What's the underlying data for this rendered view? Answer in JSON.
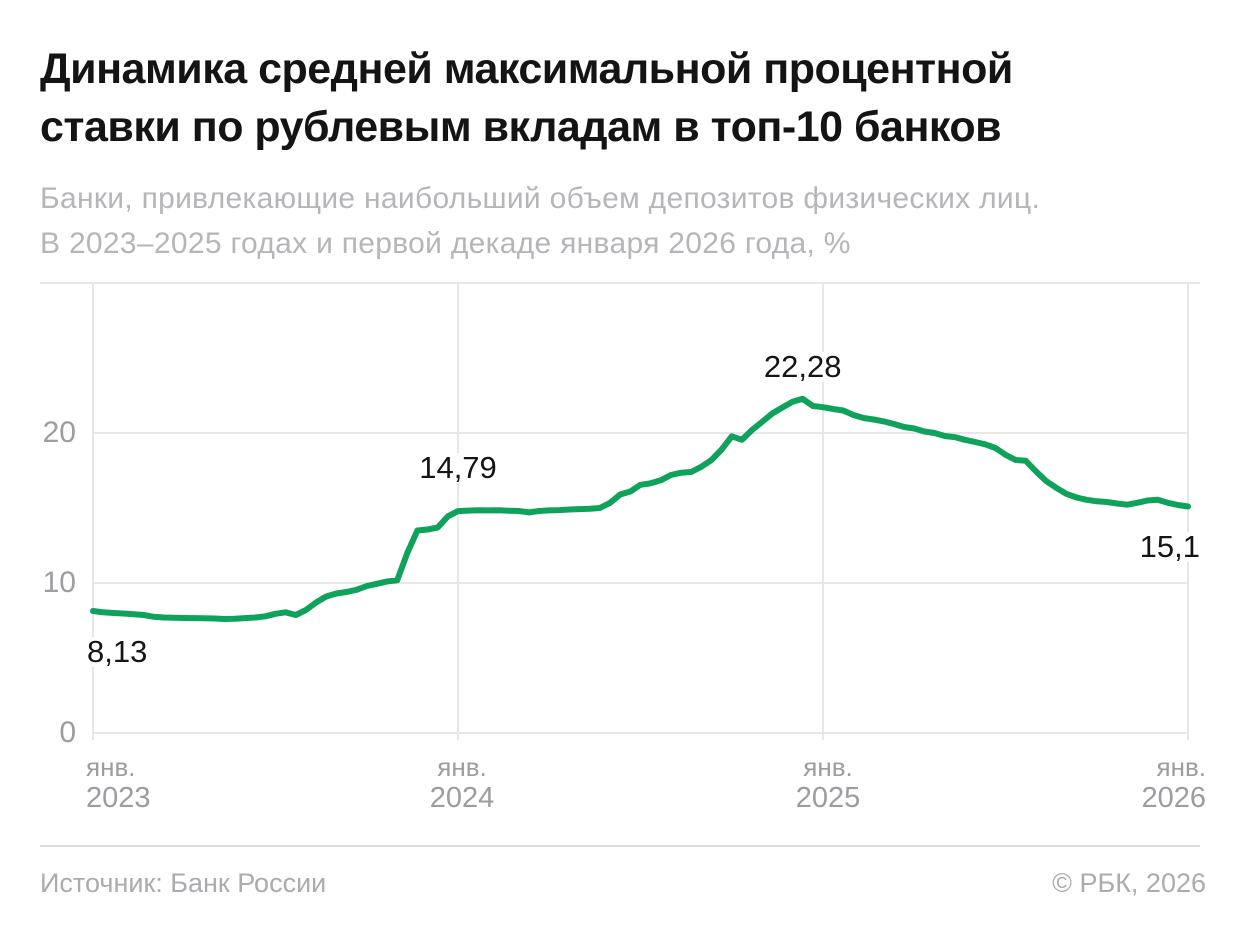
{
  "header": {
    "title_line1": "Динамика средней максимальной процентной",
    "title_line2": "ставки по рублевым вкладам в топ-10 банков",
    "subtitle_line1": "Банки, привлекающие наибольший объем депозитов физических лиц.",
    "subtitle_line2": "В 2023–2025 годах и первой декаде января 2026 года, %"
  },
  "chart_data": {
    "type": "line",
    "title": "Динамика средней максимальной процентной ставки по рублевым вкладам в топ-10 банков",
    "unit": "%",
    "x_description": "По декадам месяца, с января 2023 по первую декаду января 2026",
    "x_ticks": [
      {
        "month": "янв.",
        "year": "2023"
      },
      {
        "month": "янв.",
        "year": "2024"
      },
      {
        "month": "янв.",
        "year": "2025"
      },
      {
        "month": "янв.",
        "year": "2026"
      }
    ],
    "y_ticks": [
      0,
      10,
      20
    ],
    "ylim": [
      0,
      30
    ],
    "grid": true,
    "line_color": "#0fa25a",
    "values": [
      8.13,
      8.05,
      8.0,
      7.97,
      7.92,
      7.87,
      7.75,
      7.7,
      7.68,
      7.67,
      7.66,
      7.65,
      7.63,
      7.6,
      7.62,
      7.66,
      7.7,
      7.78,
      7.95,
      8.05,
      7.87,
      8.2,
      8.7,
      9.1,
      9.3,
      9.4,
      9.55,
      9.8,
      9.95,
      10.1,
      10.18,
      12.0,
      13.5,
      13.57,
      13.7,
      14.45,
      14.79,
      14.83,
      14.85,
      14.84,
      14.85,
      14.82,
      14.8,
      14.71,
      14.8,
      14.84,
      14.86,
      14.9,
      14.93,
      14.95,
      15.0,
      15.35,
      15.9,
      16.1,
      16.55,
      16.65,
      16.85,
      17.2,
      17.35,
      17.4,
      17.75,
      18.2,
      18.9,
      19.78,
      19.55,
      20.2,
      20.75,
      21.3,
      21.7,
      22.08,
      22.28,
      21.8,
      21.72,
      21.6,
      21.5,
      21.2,
      21.0,
      20.9,
      20.77,
      20.6,
      20.4,
      20.3,
      20.1,
      20.0,
      19.8,
      19.73,
      19.55,
      19.4,
      19.25,
      19.0,
      18.55,
      18.2,
      18.15,
      17.45,
      16.8,
      16.35,
      15.95,
      15.7,
      15.55,
      15.45,
      15.4,
      15.3,
      15.22,
      15.35,
      15.5,
      15.55,
      15.35,
      15.2,
      15.1
    ],
    "annotations": [
      {
        "text": "8,13",
        "value": 8.13,
        "index": 0,
        "placement": "below-start"
      },
      {
        "text": "14,79",
        "value": 14.79,
        "index": 36,
        "placement": "above"
      },
      {
        "text": "22,28",
        "value": 22.28,
        "index": 70,
        "placement": "above-peak"
      },
      {
        "text": "15,1",
        "value": 15.1,
        "index": 108,
        "placement": "below-end"
      }
    ]
  },
  "footer": {
    "source": "Источник: Банк России",
    "copyright": "© РБК, 2026"
  }
}
